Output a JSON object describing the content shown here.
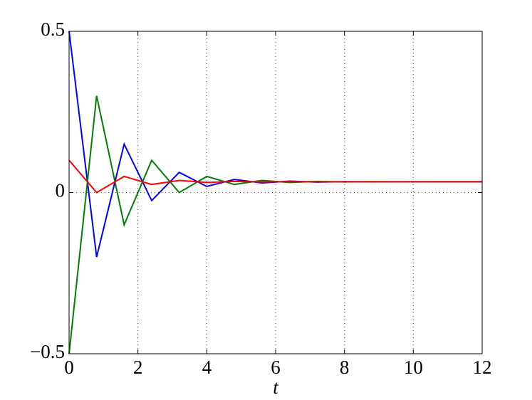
{
  "chart_data": {
    "type": "line",
    "xlabel": "t",
    "x": [
      0,
      0.8,
      1.6,
      2.4,
      3.2,
      4,
      4.8,
      5.6,
      6.4,
      7.2,
      8,
      8.8,
      9.6,
      10.4,
      11.2,
      12
    ],
    "series": [
      {
        "color": "#0000ff",
        "values": [
          0.5,
          -0.2,
          0.15,
          -0.025,
          0.0625,
          0.0188,
          0.0406,
          0.0297,
          0.0352,
          0.0324,
          0.0338,
          0.0331,
          0.0334,
          0.0333,
          0.0333,
          0.0333
        ]
      },
      {
        "color": "#008000",
        "values": [
          -0.5,
          0.3,
          -0.1,
          0.1,
          0,
          0.05,
          0.025,
          0.0375,
          0.0313,
          0.0344,
          0.0328,
          0.0336,
          0.0332,
          0.0334,
          0.0333,
          0.0333
        ]
      },
      {
        "color": "#ff0000",
        "values": [
          0.1,
          0,
          0.05,
          0.025,
          0.0375,
          0.0313,
          0.0344,
          0.0328,
          0.0336,
          0.0332,
          0.0334,
          0.0333,
          0.0333,
          0.0333,
          0.0333,
          0.0333
        ]
      }
    ],
    "xlim": [
      0,
      12
    ],
    "xticks": [
      0,
      2,
      4,
      6,
      8,
      10,
      12
    ],
    "ylim": [
      -0.5,
      0.5
    ],
    "yticks": [
      {
        "value": -0.5,
        "label": "−0.5"
      },
      0,
      0.5
    ],
    "grid": true
  }
}
